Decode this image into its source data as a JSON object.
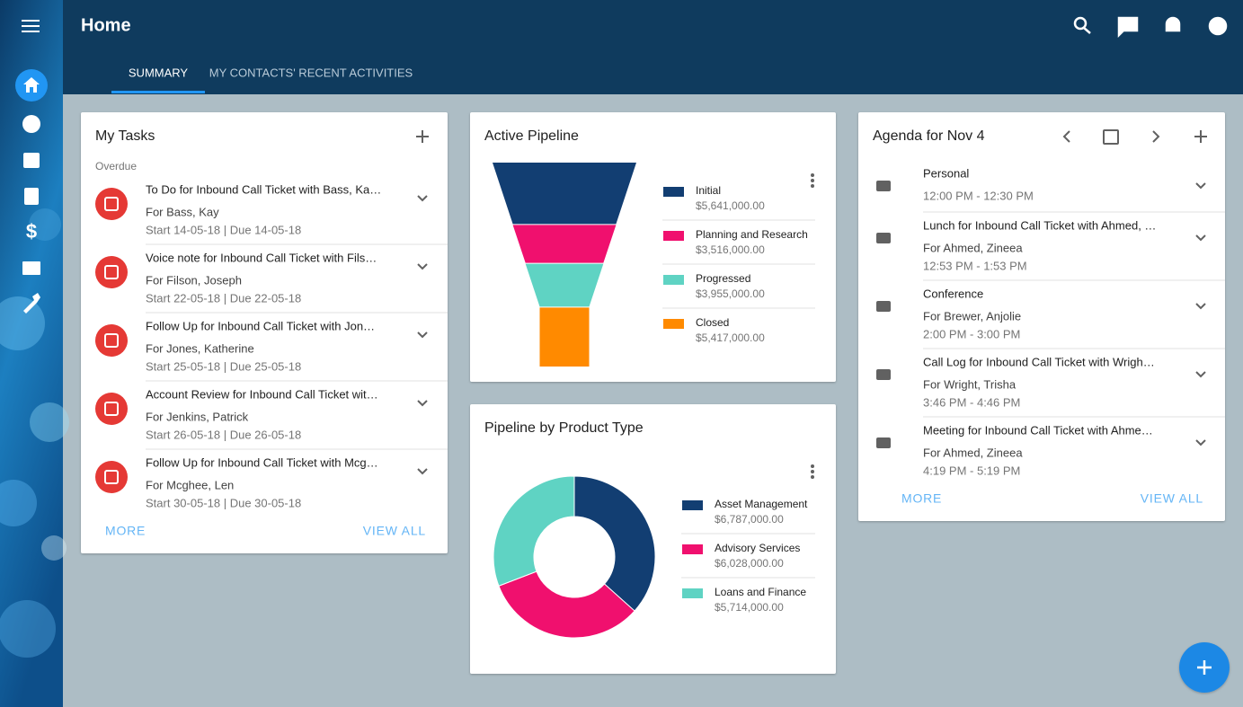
{
  "header": {
    "title": "Home",
    "tabs": [
      "SUMMARY",
      "MY CONTACTS' RECENT ACTIVITIES"
    ]
  },
  "tasks": {
    "title": "My Tasks",
    "section": "Overdue",
    "items": [
      {
        "title": "To Do for Inbound Call Ticket with Bass, Ka…",
        "for": "For Bass, Kay",
        "dates": "Start 14-05-18 | Due 14-05-18"
      },
      {
        "title": "Voice note for Inbound Call Ticket with Fils…",
        "for": "For Filson, Joseph",
        "dates": "Start 22-05-18 | Due 22-05-18"
      },
      {
        "title": "Follow Up for Inbound Call Ticket with Jon…",
        "for": "For Jones, Katherine",
        "dates": "Start 25-05-18 | Due 25-05-18"
      },
      {
        "title": "Account Review for Inbound Call Ticket wit…",
        "for": "For Jenkins, Patrick",
        "dates": "Start 26-05-18 | Due 26-05-18"
      },
      {
        "title": "Follow Up for Inbound Call Ticket with Mcg…",
        "for": "For Mcghee, Len",
        "dates": "Start 30-05-18 | Due 30-05-18"
      }
    ],
    "more": "MORE",
    "view_all": "VIEW ALL"
  },
  "agenda": {
    "title": "Agenda for Nov 4",
    "items": [
      {
        "title": "Personal",
        "time": "12:00 PM - 12:30 PM"
      },
      {
        "title": "Lunch for Inbound Call Ticket with Ahmed, …",
        "for": "For Ahmed, Zineea",
        "time": "12:53 PM - 1:53 PM"
      },
      {
        "title": "Conference",
        "for": "For Brewer, Anjolie",
        "time": "2:00 PM - 3:00 PM"
      },
      {
        "title": "Call Log for Inbound Call Ticket with Wrigh…",
        "for": "For Wright, Trisha",
        "time": "3:46 PM - 4:46 PM"
      },
      {
        "title": "Meeting for Inbound Call Ticket with Ahme…",
        "for": "For Ahmed, Zineea",
        "time": "4:19 PM - 5:19 PM"
      }
    ],
    "more": "MORE",
    "view_all": "VIEW ALL"
  },
  "chart_data": [
    {
      "type": "funnel",
      "title": "Active Pipeline",
      "categories": [
        "Initial",
        "Planning and Research",
        "Progressed",
        "Closed"
      ],
      "values": [
        5641000,
        3516000,
        3955000,
        5417000
      ],
      "value_labels": [
        "$5,641,000.00",
        "$3,516,000.00",
        "$3,955,000.00",
        "$5,417,000.00"
      ],
      "colors": [
        "#123e72",
        "#f0106e",
        "#5fd3c3",
        "#ff8a00"
      ]
    },
    {
      "type": "donut",
      "title": "Pipeline by Product Type",
      "categories": [
        "Asset Management",
        "Advisory Services",
        "Loans and Finance"
      ],
      "values": [
        6787000,
        6028000,
        5714000
      ],
      "value_labels": [
        "$6,787,000.00",
        "$6,028,000.00",
        "$5,714,000.00"
      ],
      "colors": [
        "#123e72",
        "#f0106e",
        "#5fd3c3"
      ]
    }
  ]
}
